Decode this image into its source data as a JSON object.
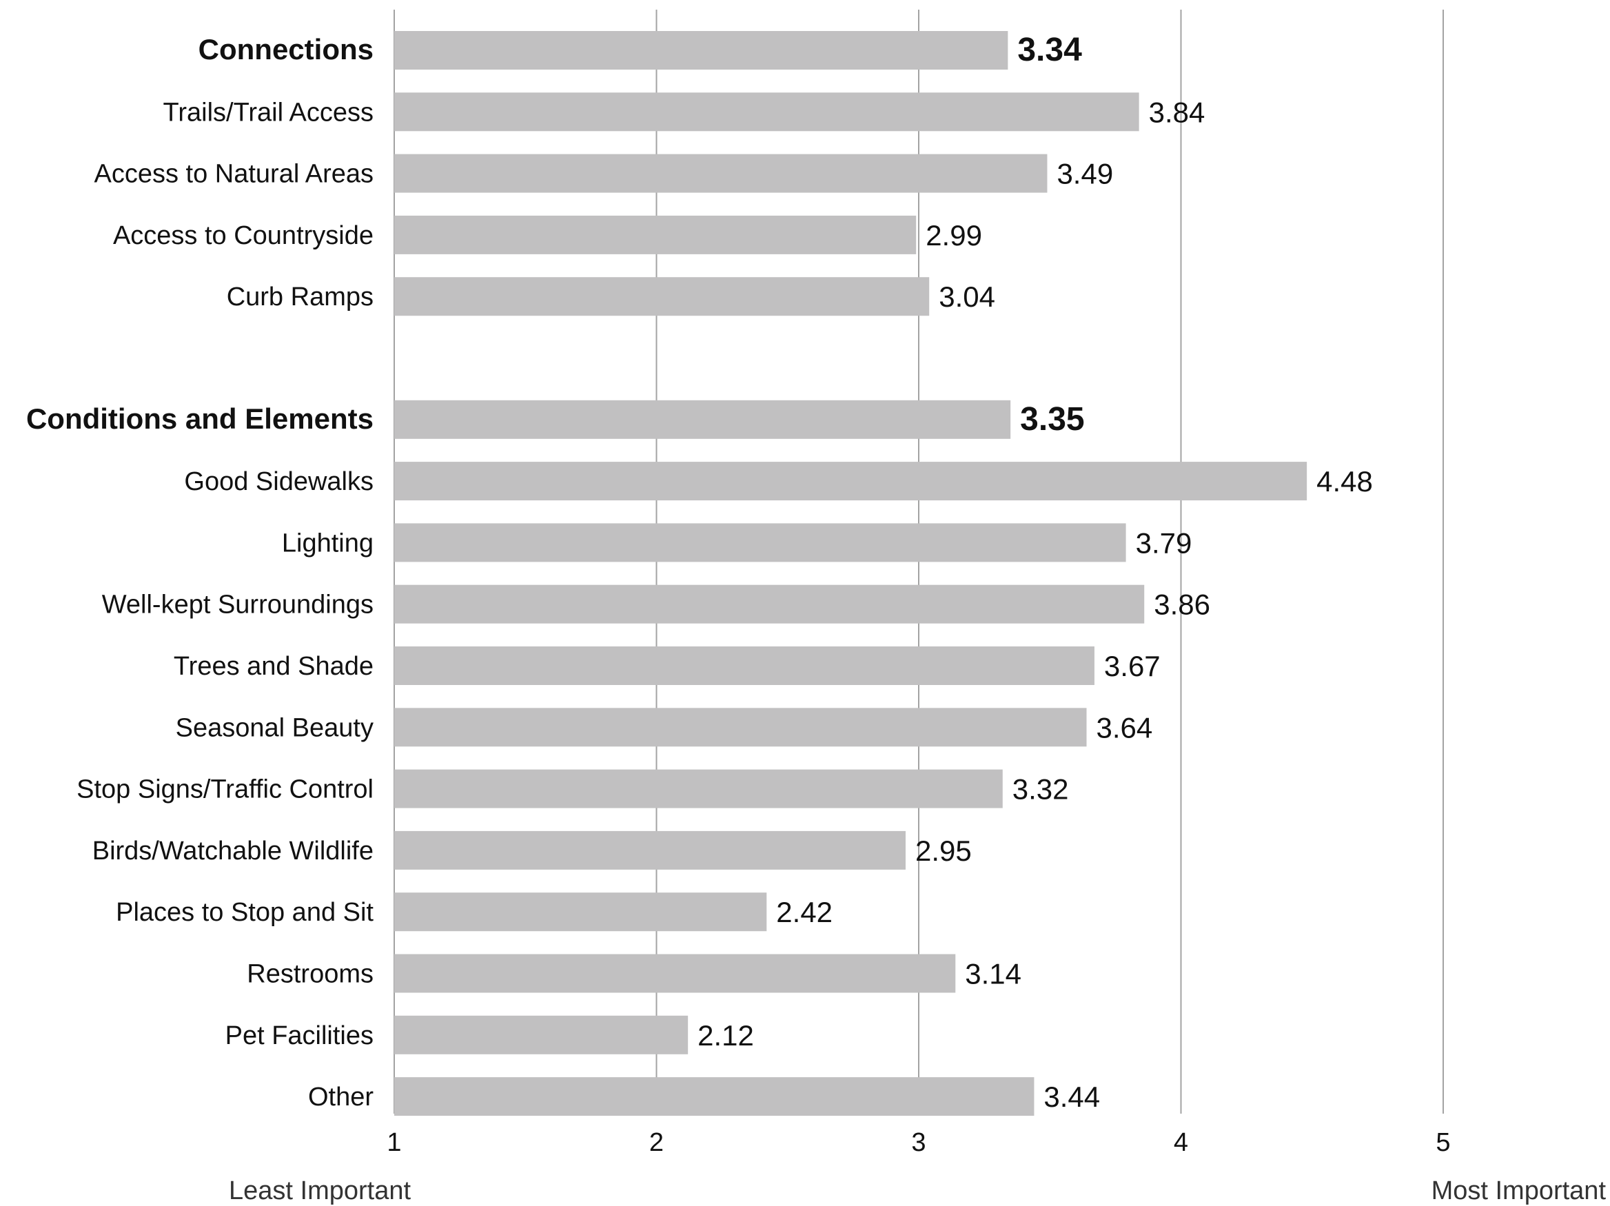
{
  "chart_data": {
    "type": "bar",
    "orientation": "horizontal",
    "title": "",
    "xlabel": "",
    "ylabel": "",
    "xlim": [
      1,
      5
    ],
    "x_ticks": [
      "1",
      "2",
      "3",
      "4",
      "5"
    ],
    "grid": true,
    "x_end_labels": {
      "low": "Least Important",
      "high": "Most Important"
    },
    "colors": {
      "bar": "#c1c0c1",
      "grid": "#a3a3a3"
    },
    "groups": [
      {
        "name": "Connections",
        "value": 3.34,
        "value_label": "3.34",
        "items": [
          {
            "label": "Trails/Trail Access",
            "value": 3.84,
            "value_label": "3.84"
          },
          {
            "label": "Access to Natural Areas",
            "value": 3.49,
            "value_label": "3.49"
          },
          {
            "label": "Access to Countryside",
            "value": 2.99,
            "value_label": "2.99"
          },
          {
            "label": "Curb Ramps",
            "value": 3.04,
            "value_label": "3.04"
          }
        ]
      },
      {
        "name": "Conditions and Elements",
        "value": 3.35,
        "value_label": "3.35",
        "items": [
          {
            "label": "Good Sidewalks",
            "value": 4.48,
            "value_label": "4.48"
          },
          {
            "label": "Lighting",
            "value": 3.79,
            "value_label": "3.79"
          },
          {
            "label": "Well-kept Surroundings",
            "value": 3.86,
            "value_label": "3.86"
          },
          {
            "label": "Trees and Shade",
            "value": 3.67,
            "value_label": "3.67"
          },
          {
            "label": "Seasonal Beauty",
            "value": 3.64,
            "value_label": "3.64"
          },
          {
            "label": "Stop Signs/Traffic Control",
            "value": 3.32,
            "value_label": "3.32"
          },
          {
            "label": "Birds/Watchable Wildlife",
            "value": 2.95,
            "value_label": "2.95"
          },
          {
            "label": "Places to Stop and Sit",
            "value": 2.42,
            "value_label": "2.42"
          },
          {
            "label": "Restrooms",
            "value": 3.14,
            "value_label": "3.14"
          },
          {
            "label": "Pet Facilities",
            "value": 2.12,
            "value_label": "2.12"
          },
          {
            "label": "Other",
            "value": 3.44,
            "value_label": "3.44"
          }
        ]
      }
    ]
  }
}
